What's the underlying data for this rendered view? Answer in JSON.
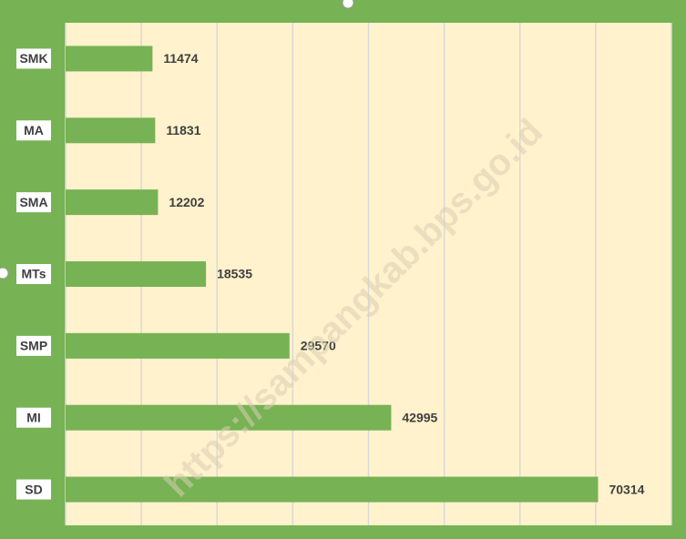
{
  "chart_data": {
    "type": "bar",
    "orientation": "horizontal",
    "categories": [
      "SMK",
      "MA",
      "SMA",
      "MTs",
      "SMP",
      "MI",
      "SD"
    ],
    "values": [
      11474,
      11831,
      12202,
      18535,
      29570,
      42995,
      70314
    ],
    "color": "#77b255",
    "xlim": [
      0,
      80000
    ],
    "xticks": [
      0,
      10000,
      20000,
      30000,
      40000,
      50000,
      60000,
      70000,
      80000
    ],
    "grid": true,
    "watermark": "https://sampangkab.bps.go.id"
  }
}
